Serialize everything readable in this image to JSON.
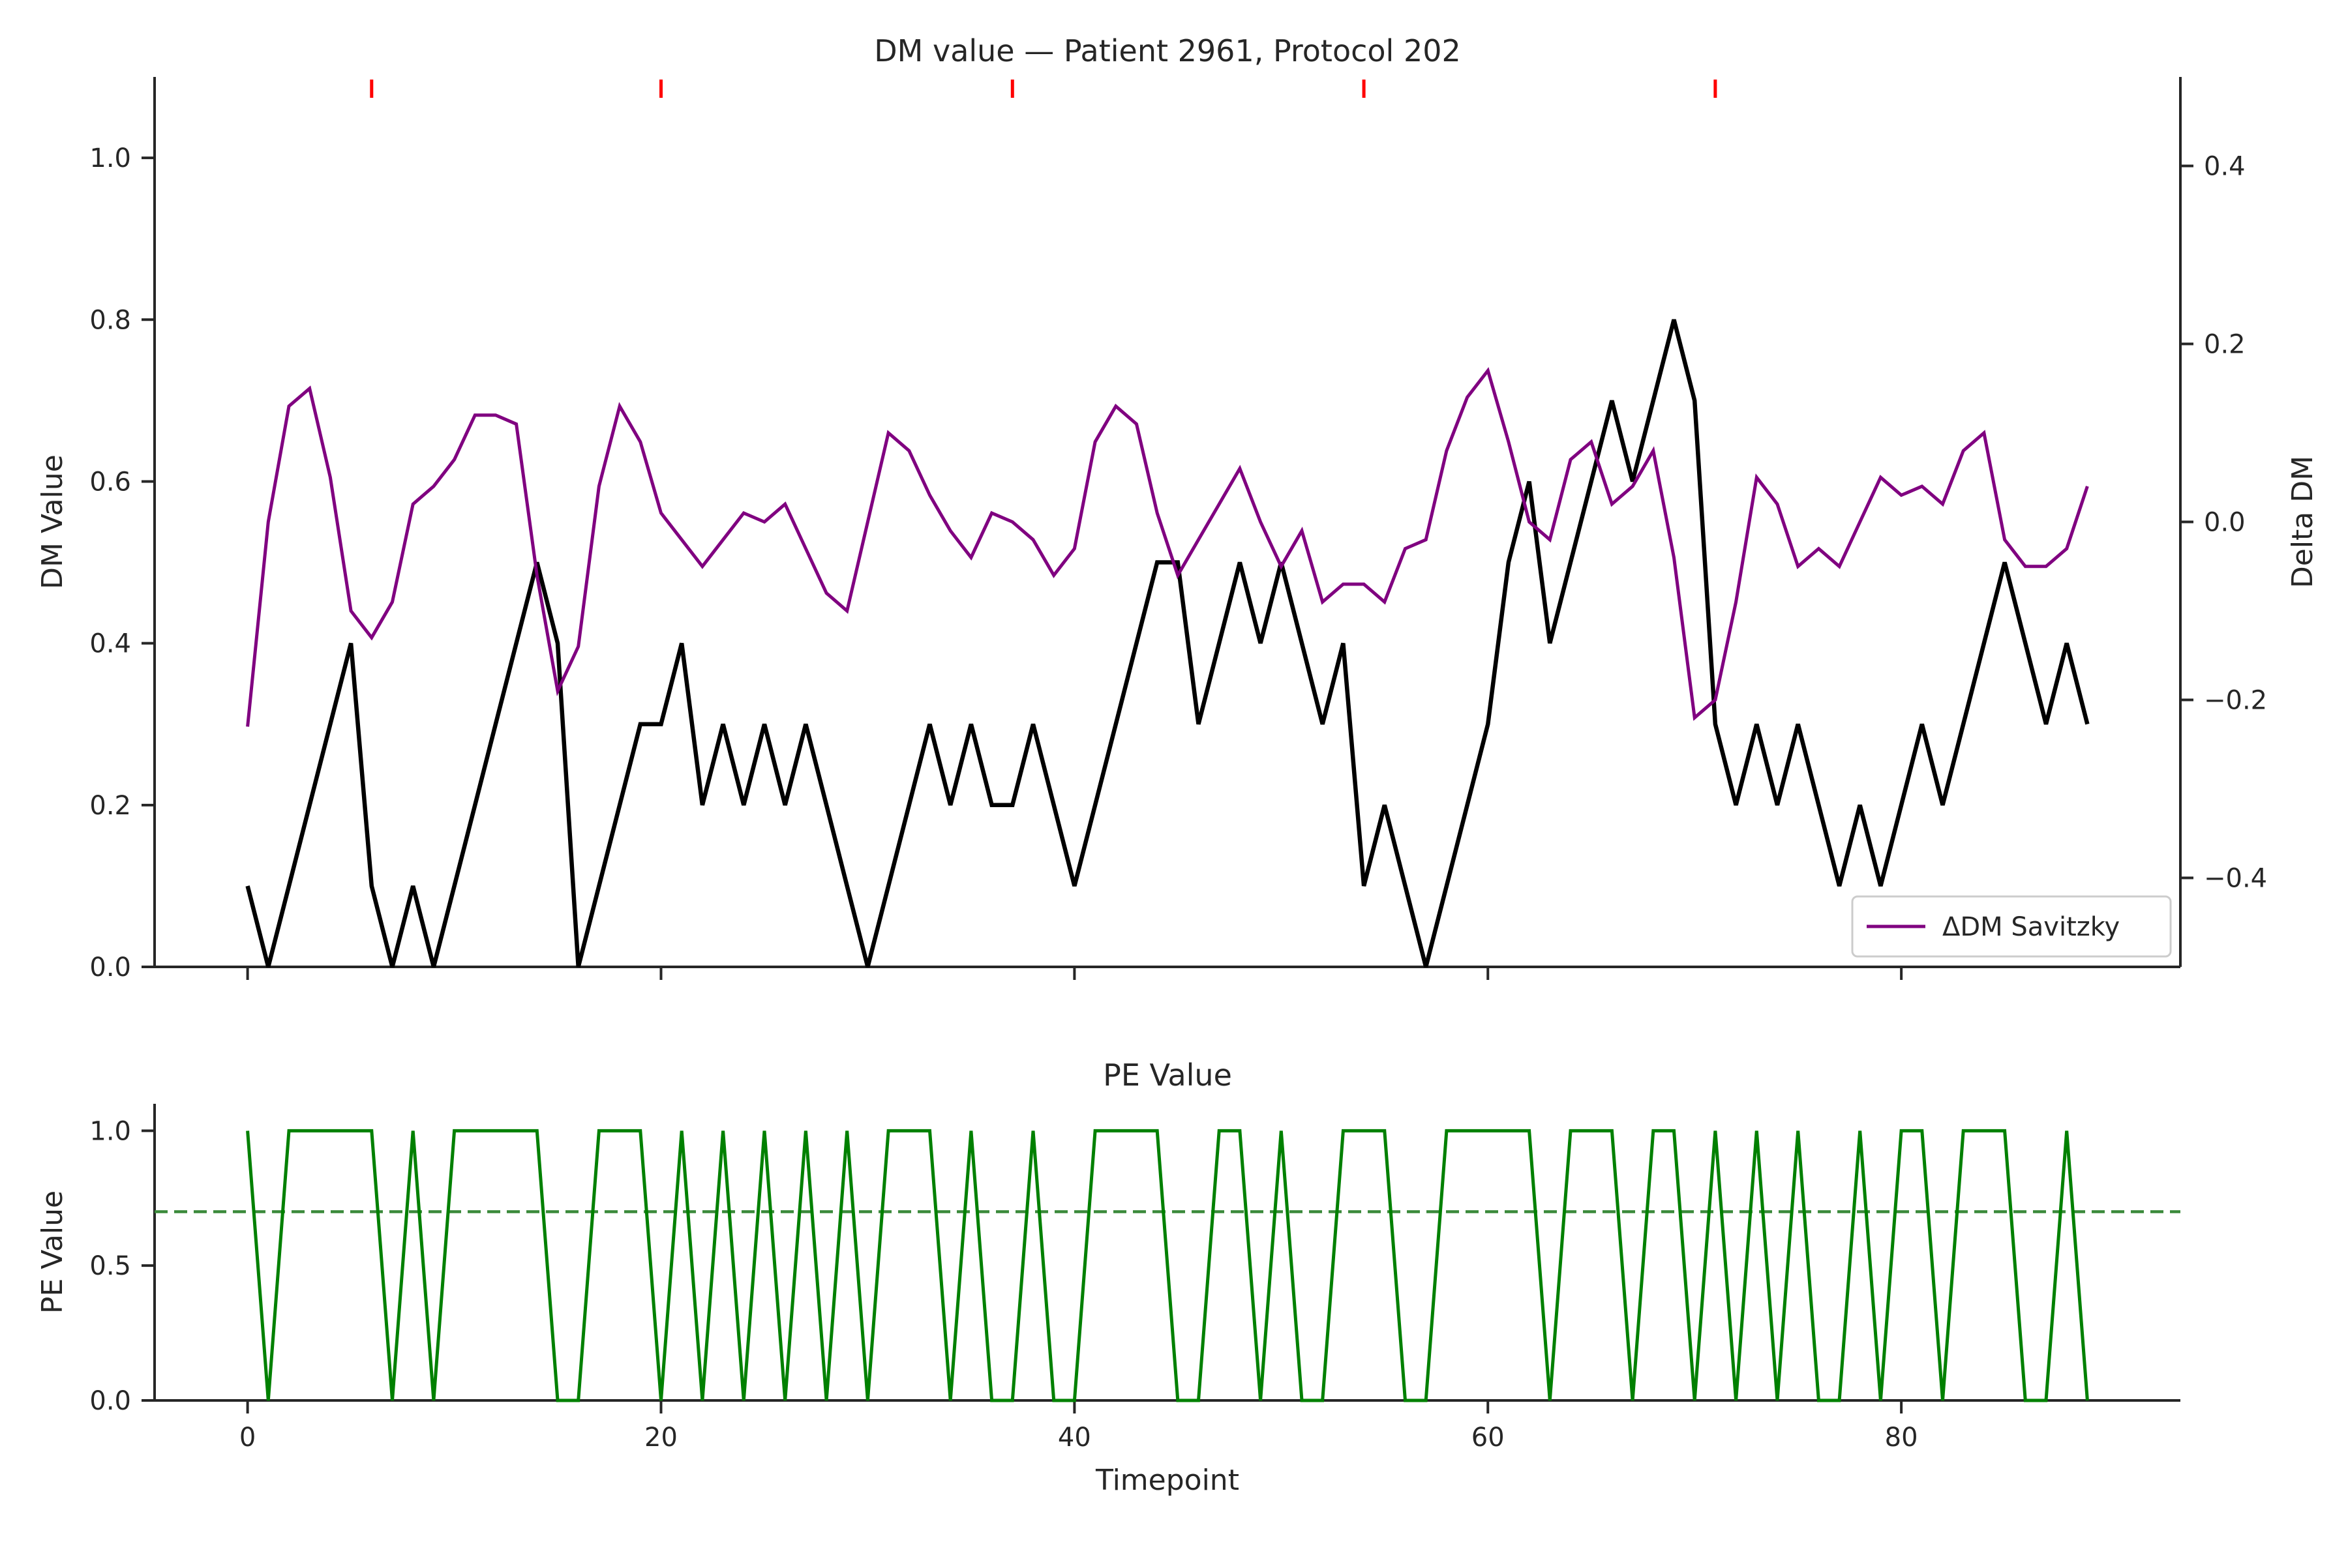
{
  "chart_data": [
    {
      "type": "line",
      "title": "DM value — Patient 2961, Protocol 202",
      "xlabel": "",
      "ylabel": "DM Value",
      "y2label": "Delta DM",
      "xlim": [
        -4.5,
        93.5
      ],
      "ylim": [
        0,
        1.1
      ],
      "y2lim": [
        -0.5,
        0.5
      ],
      "xticks": [
        0,
        20,
        40,
        60,
        80
      ],
      "xtick_labels_visible": false,
      "yticks": [
        0.0,
        0.2,
        0.4,
        0.6,
        0.8,
        1.0
      ],
      "ytick_labels": [
        "0.0",
        "0.2",
        "0.4",
        "0.6",
        "0.8",
        "1.0"
      ],
      "y2ticks": [
        -0.4,
        -0.2,
        0.0,
        0.2,
        0.4
      ],
      "y2tick_labels": [
        "−0.4",
        "−0.2",
        "0.0",
        "0.2",
        "0.4"
      ],
      "grid": false,
      "legend_position": "lower-right",
      "event_markers": {
        "color": "#ff0000",
        "x": [
          6,
          20,
          37,
          54,
          71
        ]
      },
      "series": [
        {
          "axis": "left",
          "color": "#000000",
          "x": [
            0,
            1,
            2,
            3,
            4,
            5,
            6,
            7,
            8,
            9,
            10,
            11,
            12,
            13,
            14,
            15,
            16,
            17,
            18,
            19,
            20,
            21,
            22,
            23,
            24,
            25,
            26,
            27,
            28,
            29,
            30,
            31,
            32,
            33,
            34,
            35,
            36,
            37,
            38,
            39,
            40,
            41,
            42,
            43,
            44,
            45,
            46,
            47,
            48,
            49,
            50,
            51,
            52,
            53,
            54,
            55,
            56,
            57,
            58,
            59,
            60,
            61,
            62,
            63,
            64,
            65,
            66,
            67,
            68,
            69,
            70,
            71,
            72,
            73,
            74,
            75,
            76,
            77,
            78,
            79,
            80,
            81,
            82,
            83,
            84,
            85,
            86,
            87,
            88,
            89
          ],
          "values": [
            0.1,
            0.0,
            0.1,
            0.2,
            0.3,
            0.4,
            0.1,
            0.0,
            0.1,
            0.0,
            0.1,
            0.2,
            0.3,
            0.4,
            0.5,
            0.4,
            0.0,
            0.1,
            0.2,
            0.3,
            0.3,
            0.4,
            0.2,
            0.3,
            0.2,
            0.3,
            0.2,
            0.3,
            0.2,
            0.1,
            0.0,
            0.1,
            0.2,
            0.3,
            0.2,
            0.3,
            0.2,
            0.2,
            0.3,
            0.2,
            0.1,
            0.2,
            0.3,
            0.4,
            0.5,
            0.5,
            0.3,
            0.4,
            0.5,
            0.4,
            0.5,
            0.4,
            0.3,
            0.4,
            0.1,
            0.2,
            0.1,
            0.0,
            0.1,
            0.2,
            0.3,
            0.5,
            0.6,
            0.4,
            0.5,
            0.6,
            0.7,
            0.6,
            0.7,
            0.8,
            0.7,
            0.3,
            0.2,
            0.3,
            0.2,
            0.3,
            0.2,
            0.1,
            0.2,
            0.1,
            0.2,
            0.3,
            0.2,
            0.3,
            0.4,
            0.5,
            0.4,
            0.3,
            0.4,
            0.3
          ]
        },
        {
          "axis": "right",
          "name": "ΔDM Savitzky",
          "color": "#800080",
          "x": [
            0,
            1,
            2,
            3,
            4,
            5,
            6,
            7,
            8,
            9,
            10,
            11,
            12,
            13,
            14,
            15,
            16,
            17,
            18,
            19,
            20,
            21,
            22,
            23,
            24,
            25,
            26,
            27,
            28,
            29,
            30,
            31,
            32,
            33,
            34,
            35,
            36,
            37,
            38,
            39,
            40,
            41,
            42,
            43,
            44,
            45,
            46,
            47,
            48,
            49,
            50,
            51,
            52,
            53,
            54,
            55,
            56,
            57,
            58,
            59,
            60,
            61,
            62,
            63,
            64,
            65,
            66,
            67,
            68,
            69,
            70,
            71,
            72,
            73,
            74,
            75,
            76,
            77,
            78,
            79,
            80,
            81,
            82,
            83,
            84,
            85,
            86,
            87,
            88,
            89
          ],
          "values": [
            -0.23,
            0.0,
            0.13,
            0.15,
            0.05,
            -0.1,
            -0.13,
            -0.09,
            0.02,
            0.04,
            0.07,
            0.12,
            0.12,
            0.11,
            -0.06,
            -0.19,
            -0.14,
            0.04,
            0.13,
            0.09,
            0.01,
            -0.02,
            -0.05,
            -0.02,
            0.01,
            0.0,
            0.02,
            -0.03,
            -0.08,
            -0.1,
            0.0,
            0.1,
            0.08,
            0.03,
            -0.01,
            -0.04,
            0.01,
            0.0,
            -0.02,
            -0.06,
            -0.03,
            0.09,
            0.13,
            0.11,
            0.01,
            -0.06,
            -0.02,
            0.02,
            0.06,
            0.0,
            -0.05,
            -0.01,
            -0.09,
            -0.07,
            -0.07,
            -0.09,
            -0.03,
            -0.02,
            0.08,
            0.14,
            0.17,
            0.09,
            0.0,
            -0.02,
            0.07,
            0.09,
            0.02,
            0.04,
            0.08,
            -0.04,
            -0.22,
            -0.2,
            -0.09,
            0.05,
            0.02,
            -0.05,
            -0.03,
            -0.05,
            0.0,
            0.05,
            0.03,
            0.04,
            0.02,
            0.08,
            0.1,
            -0.02,
            -0.05,
            -0.05,
            -0.03,
            0.04
          ]
        }
      ]
    },
    {
      "type": "line",
      "title": "PE Value",
      "xlabel": "Timepoint",
      "ylabel": "PE Value",
      "xlim": [
        -4.5,
        93.5
      ],
      "ylim": [
        0,
        1.1
      ],
      "xticks": [
        0,
        20,
        40,
        60,
        80
      ],
      "xtick_labels": [
        "0",
        "20",
        "40",
        "60",
        "80"
      ],
      "yticks": [
        0.0,
        0.5,
        1.0
      ],
      "ytick_labels": [
        "0.0",
        "0.5",
        "1.0"
      ],
      "grid": false,
      "threshold": {
        "value": 0.7,
        "style": "dashed",
        "color": "#3a8a3a"
      },
      "series": [
        {
          "color": "#008000",
          "x": [
            0,
            1,
            2,
            3,
            4,
            5,
            6,
            7,
            8,
            9,
            10,
            11,
            12,
            13,
            14,
            15,
            16,
            17,
            18,
            19,
            20,
            21,
            22,
            23,
            24,
            25,
            26,
            27,
            28,
            29,
            30,
            31,
            32,
            33,
            34,
            35,
            36,
            37,
            38,
            39,
            40,
            41,
            42,
            43,
            44,
            45,
            46,
            47,
            48,
            49,
            50,
            51,
            52,
            53,
            54,
            55,
            56,
            57,
            58,
            59,
            60,
            61,
            62,
            63,
            64,
            65,
            66,
            67,
            68,
            69,
            70,
            71,
            72,
            73,
            74,
            75,
            76,
            77,
            78,
            79,
            80,
            81,
            82,
            83,
            84,
            85,
            86,
            87,
            88,
            89
          ],
          "values": [
            1,
            0,
            1,
            1,
            1,
            1,
            1,
            0,
            1,
            0,
            1,
            1,
            1,
            1,
            1,
            0,
            0,
            1,
            1,
            1,
            0,
            1,
            0,
            1,
            0,
            1,
            0,
            1,
            0,
            1,
            0,
            1,
            1,
            1,
            0,
            1,
            0,
            0,
            1,
            0,
            0,
            1,
            1,
            1,
            1,
            0,
            0,
            1,
            1,
            0,
            1,
            0,
            0,
            1,
            1,
            1,
            0,
            0,
            1,
            1,
            1,
            1,
            1,
            0,
            1,
            1,
            1,
            0,
            1,
            1,
            0,
            1,
            0,
            1,
            0,
            1,
            0,
            0,
            1,
            0,
            1,
            1,
            0,
            1,
            1,
            1,
            0,
            0,
            1,
            0
          ]
        }
      ]
    }
  ]
}
